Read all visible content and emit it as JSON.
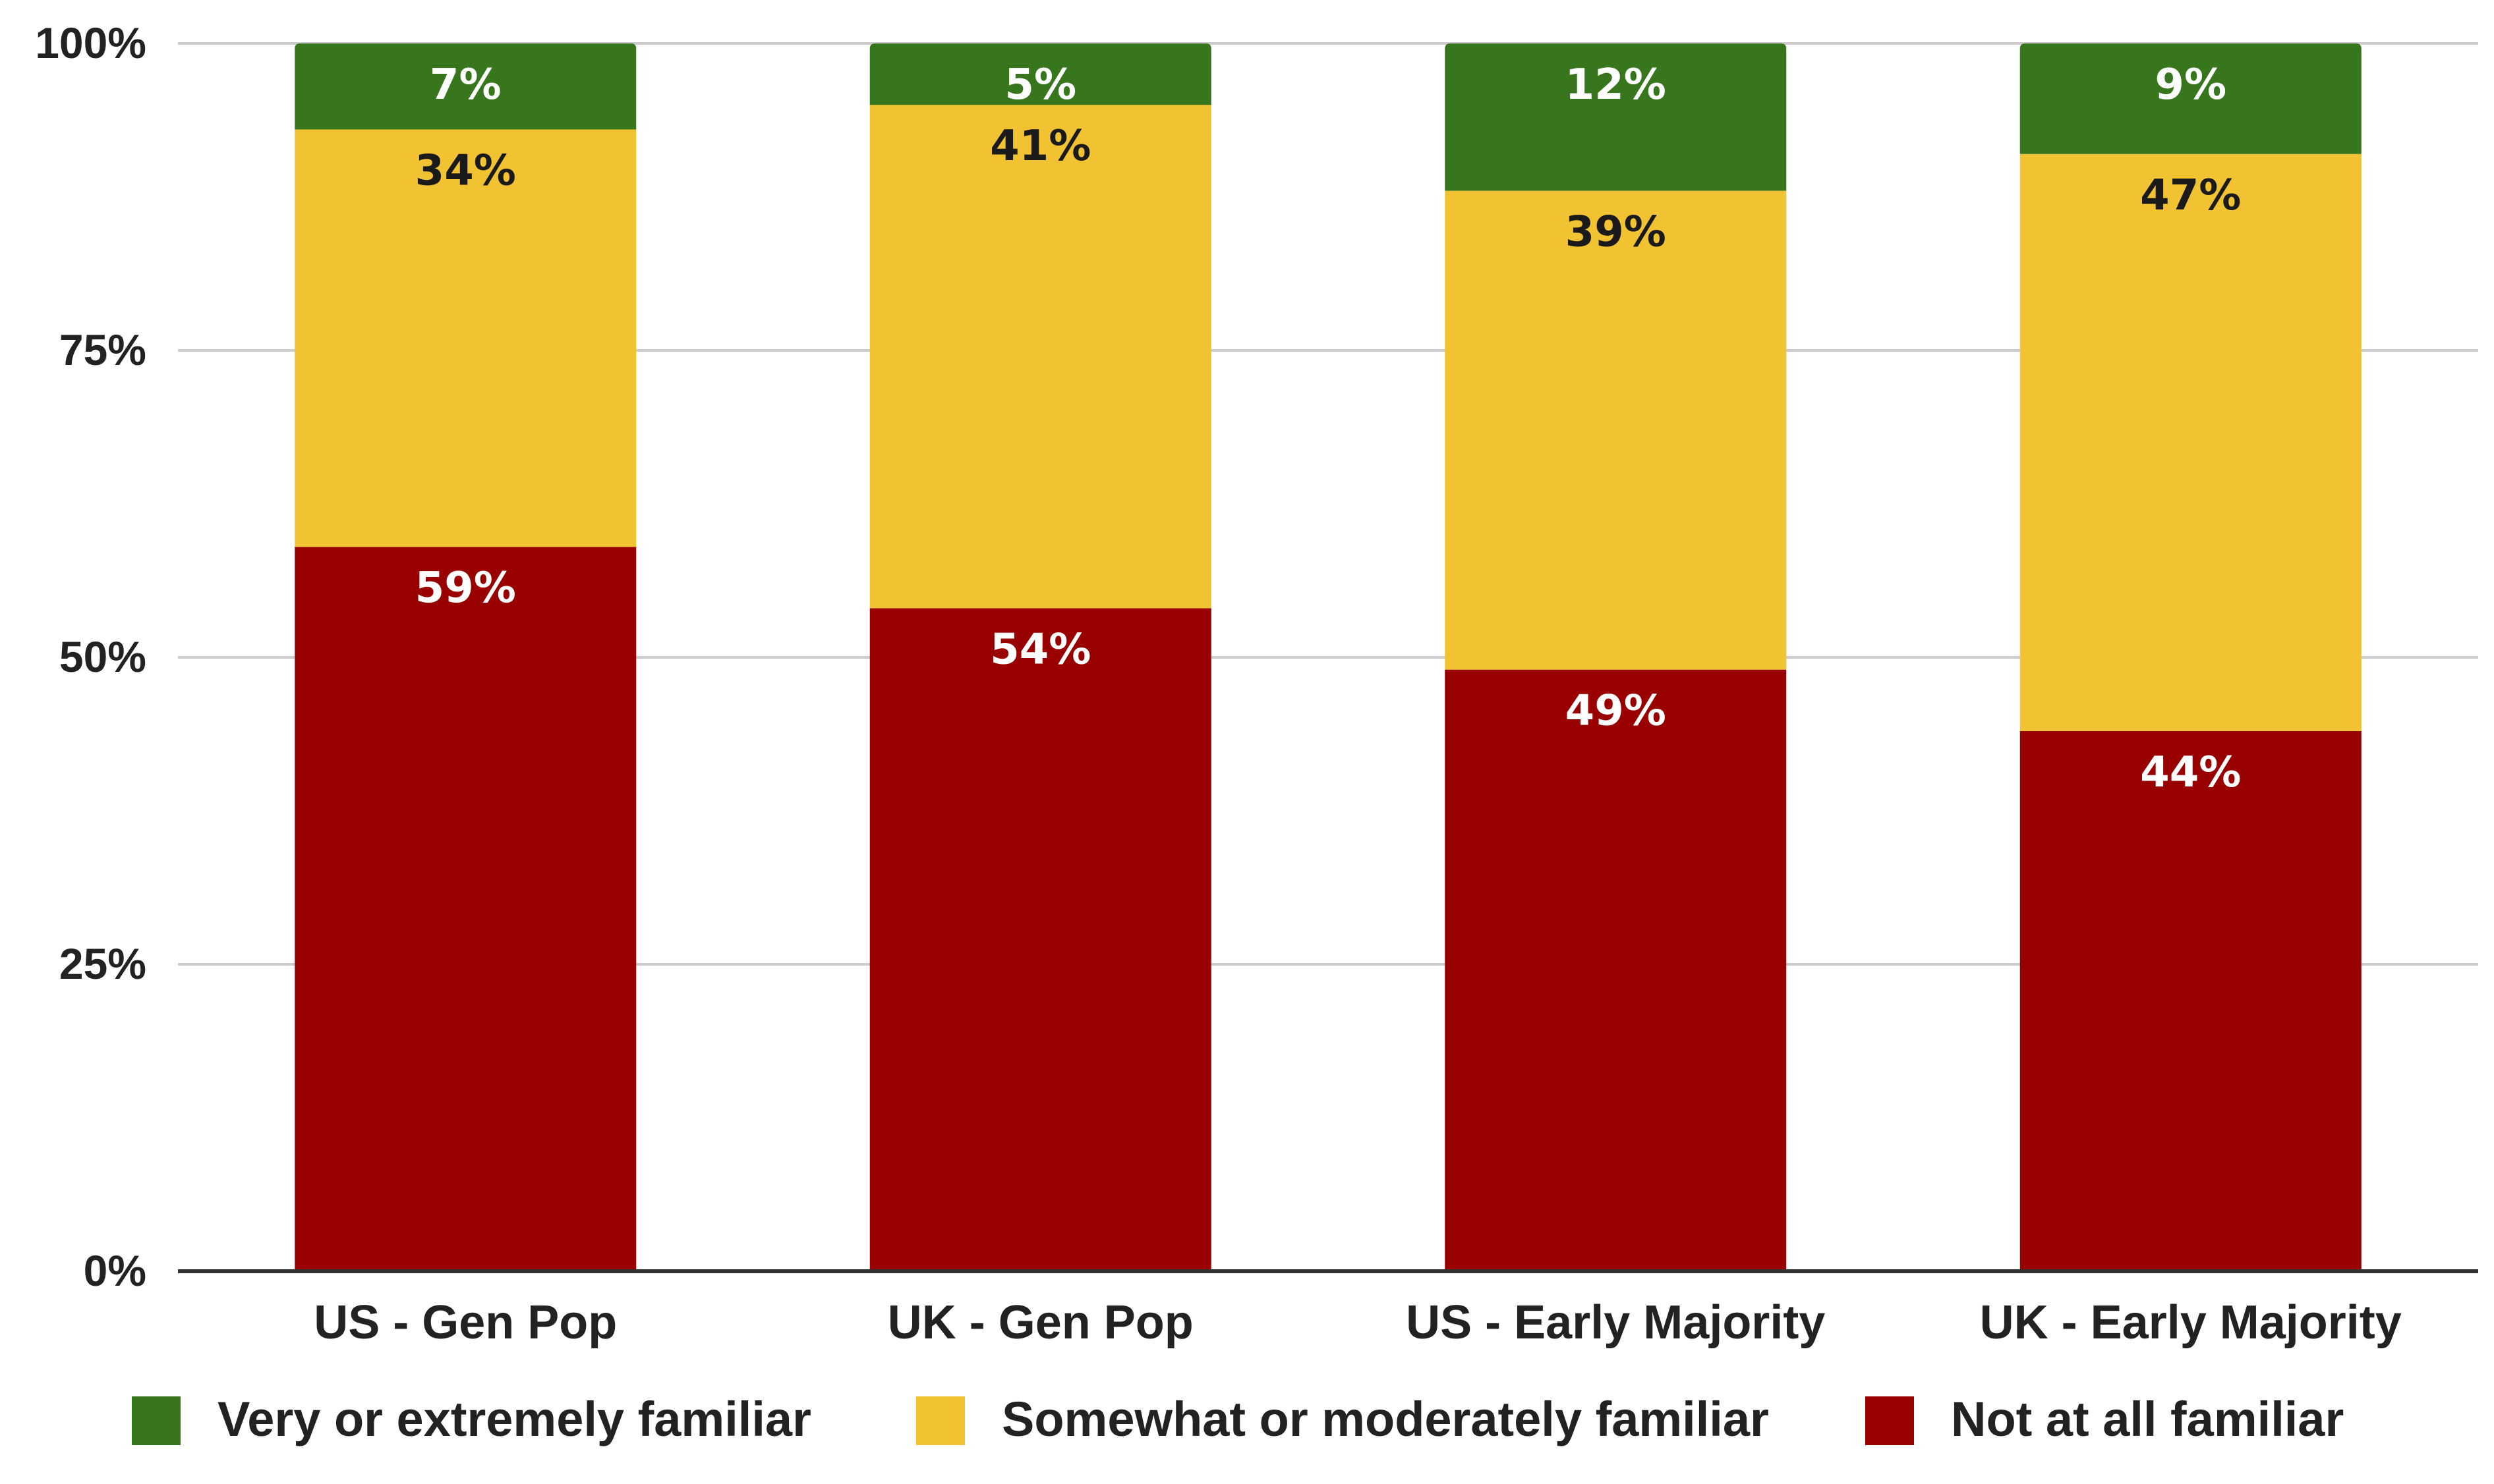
{
  "chart_data": {
    "type": "bar",
    "stacked": true,
    "categories": [
      "US -  Gen Pop",
      "UK - Gen Pop",
      "US - Early Majority",
      "UK - Early Majority"
    ],
    "series": [
      {
        "name": "Not at all familiar",
        "color": "#990000",
        "label_color": "#ffffff",
        "values": [
          59,
          54,
          49,
          44
        ],
        "labels": [
          "59%",
          "54%",
          "49%",
          "44%"
        ]
      },
      {
        "name": "Somewhat or moderately familiar",
        "color": "#f1c232",
        "label_color": "#1a1a1a",
        "values": [
          34,
          41,
          39,
          47
        ],
        "labels": [
          "34%",
          "41%",
          "39%",
          "47%"
        ]
      },
      {
        "name": "Very or extremely familiar",
        "color": "#38761d",
        "label_color": "#ffffff",
        "values": [
          7,
          5,
          12,
          9
        ],
        "labels": [
          "7%",
          "5%",
          "12%",
          "9%"
        ]
      }
    ],
    "yticks": [
      0,
      25,
      50,
      75,
      100
    ],
    "ytick_labels": [
      "0%",
      "25%",
      "50%",
      "75%",
      "100%"
    ],
    "ylim": [
      0,
      100
    ],
    "grid": true,
    "legend_position": "bottom",
    "legend_order": [
      "Very or extremely familiar",
      "Somewhat or moderately familiar",
      "Not at all familiar"
    ]
  }
}
